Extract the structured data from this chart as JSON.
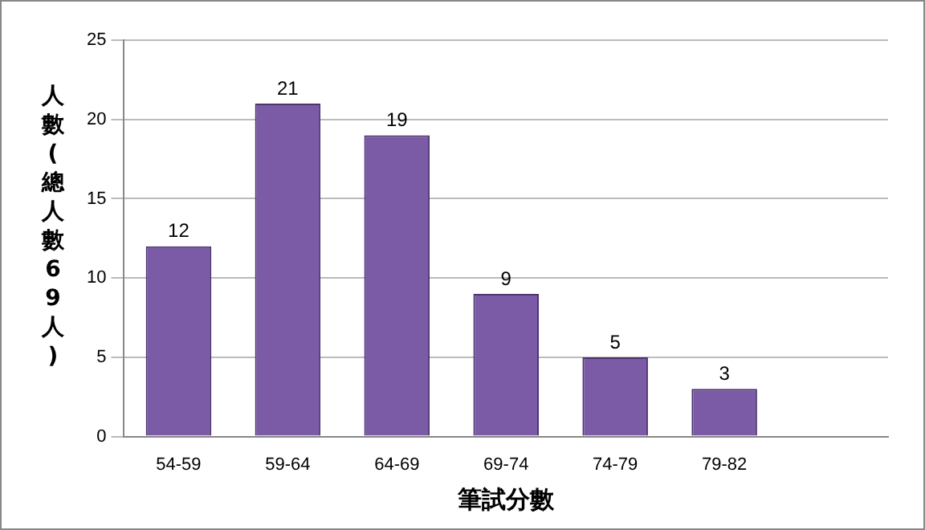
{
  "chart_data": {
    "type": "bar",
    "xlabel": "筆試分數",
    "ylabel": "人數(總人數69人)",
    "categories": [
      "54-59",
      "59-64",
      "64-69",
      "69-74",
      "74-79",
      "79-82",
      null
    ],
    "values": [
      12,
      21,
      19,
      9,
      5,
      3,
      null
    ],
    "color": "#7b5aa6",
    "ylim": [
      0,
      25
    ],
    "yticks": [
      0,
      5,
      10,
      15,
      20,
      25
    ],
    "grid": "y",
    "data_labels": true,
    "legend": false
  }
}
